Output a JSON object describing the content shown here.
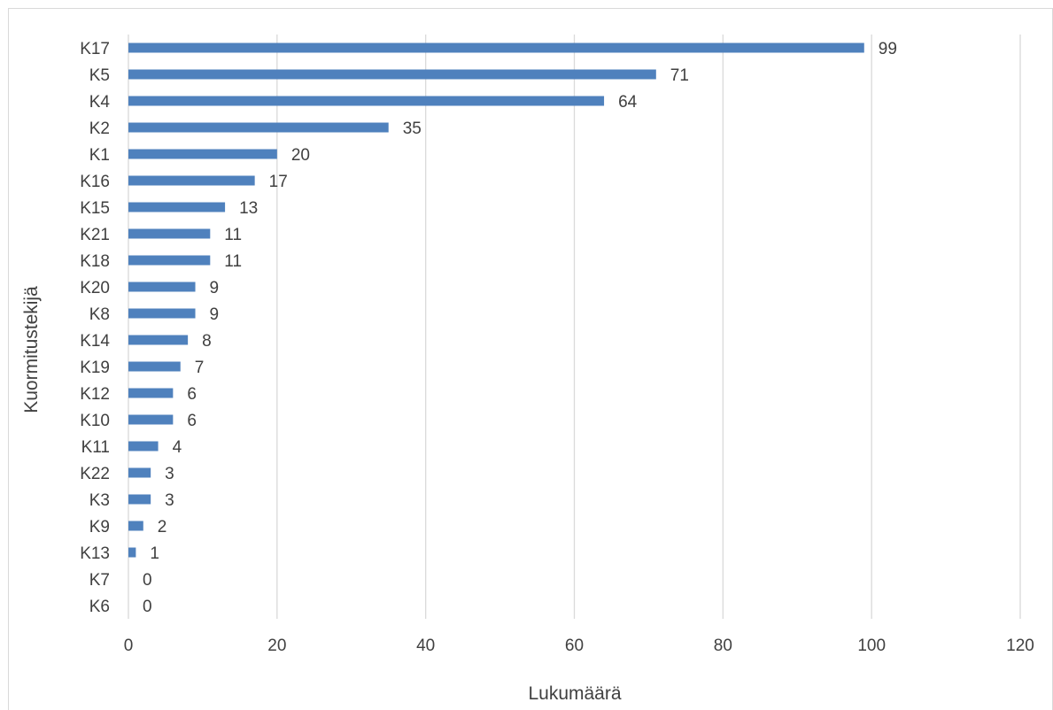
{
  "chart_data": {
    "type": "bar",
    "orientation": "horizontal",
    "categories": [
      "K17",
      "K5",
      "K4",
      "K2",
      "K1",
      "K16",
      "K15",
      "K21",
      "K18",
      "K20",
      "K8",
      "K14",
      "K19",
      "K12",
      "K10",
      "K11",
      "K22",
      "K3",
      "K9",
      "K13",
      "K7",
      "K6"
    ],
    "values": [
      99,
      71,
      64,
      35,
      20,
      17,
      13,
      11,
      11,
      9,
      9,
      8,
      7,
      6,
      6,
      4,
      3,
      3,
      2,
      1,
      0,
      0
    ],
    "xlabel": "Lukumäärä",
    "ylabel": "Kuormitustekijä",
    "xlim": [
      0,
      120
    ],
    "xticks": [
      0,
      20,
      40,
      60,
      80,
      100,
      120
    ],
    "grid": "vertical",
    "data_labels": true,
    "bar_color": "#4f81bd"
  }
}
